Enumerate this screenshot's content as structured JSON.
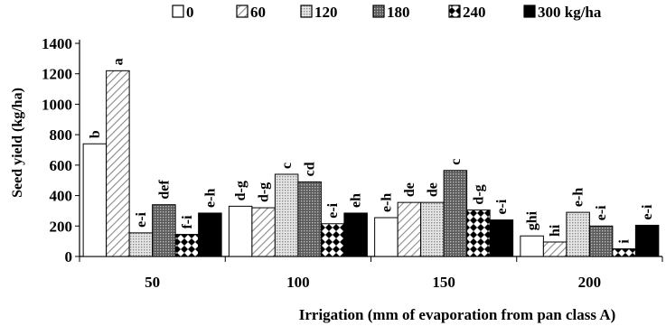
{
  "chart_data": {
    "type": "bar",
    "xlabel": "Irrigation (mm of evaporation from pan class A)",
    "ylabel": "Seed yield (kg/ha)",
    "ylim": [
      0,
      1400
    ],
    "yticks": [
      0,
      200,
      400,
      600,
      800,
      1000,
      1200,
      1400
    ],
    "categories": [
      "50",
      "100",
      "150",
      "200"
    ],
    "legend": {
      "placement": "top"
    },
    "series": [
      {
        "name": "0",
        "pattern": "white",
        "values": [
          740,
          330,
          255,
          135
        ],
        "letters": [
          "b",
          "d-g",
          "e-h",
          "ghi"
        ]
      },
      {
        "name": "60",
        "pattern": "diagonal",
        "values": [
          1220,
          320,
          355,
          95
        ],
        "letters": [
          "a",
          "d-g",
          "de",
          "hi"
        ]
      },
      {
        "name": "120",
        "pattern": "dotted-light",
        "values": [
          155,
          540,
          355,
          290
        ],
        "letters": [
          "e-i",
          "c",
          "de",
          "e-h"
        ]
      },
      {
        "name": "180",
        "pattern": "dotted-dark",
        "values": [
          340,
          490,
          565,
          200
        ],
        "letters": [
          "def",
          "cd",
          "c",
          "e-i"
        ]
      },
      {
        "name": "240",
        "pattern": "checker",
        "values": [
          145,
          215,
          305,
          50
        ],
        "letters": [
          "f-i",
          "e-i",
          "d-g",
          "i"
        ]
      },
      {
        "name": "300 kg/ha",
        "pattern": "black",
        "values": [
          285,
          285,
          240,
          205
        ],
        "letters": [
          "e-h",
          "eh",
          "e-i",
          "e-i"
        ]
      }
    ]
  }
}
